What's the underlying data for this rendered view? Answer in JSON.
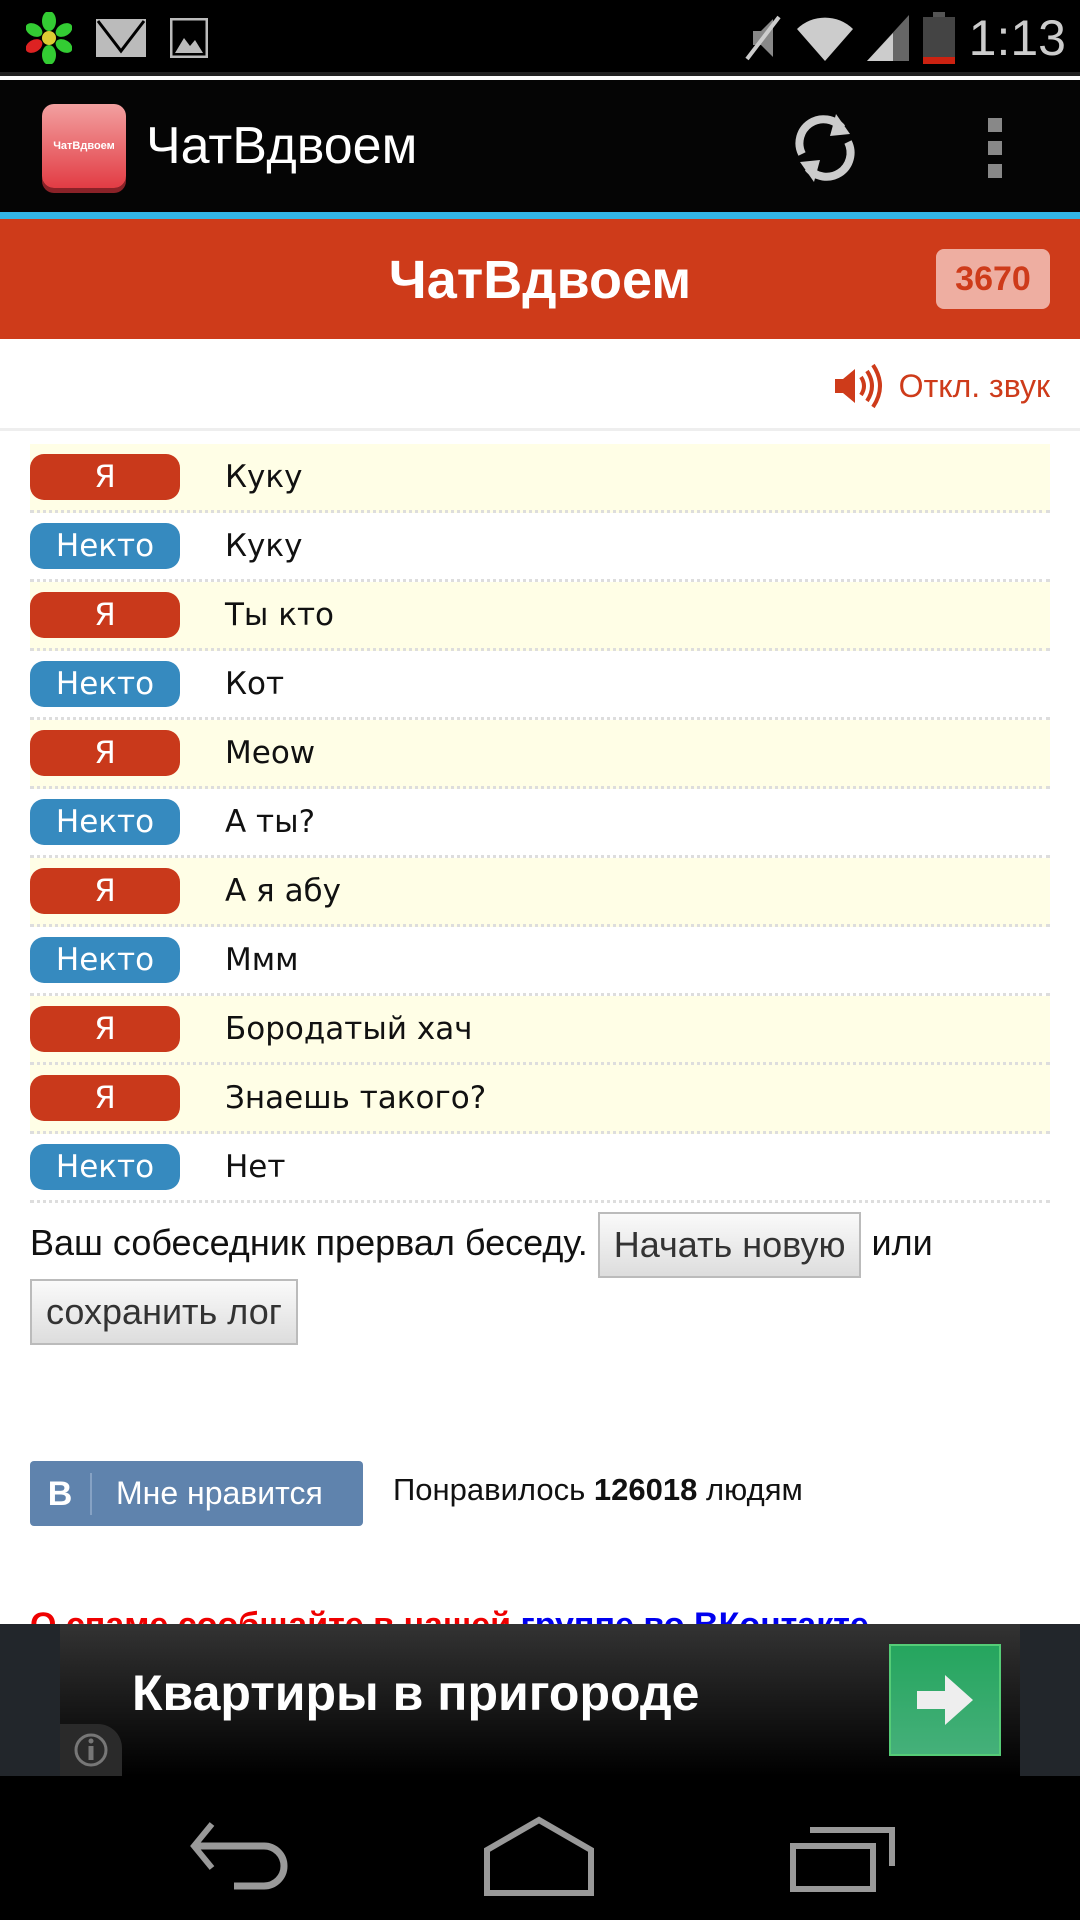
{
  "status_bar": {
    "time": "1:13",
    "icons": [
      "icq-icon",
      "mail-icon",
      "image-icon",
      "mute-icon",
      "wifi-icon",
      "signal-icon",
      "battery-low-icon"
    ]
  },
  "action_bar": {
    "logo_text": "ЧатВдвоем",
    "title": "ЧатВдвоем",
    "actions": [
      "refresh-icon",
      "overflow-menu-icon"
    ]
  },
  "header": {
    "title": "ЧатВдвоем",
    "online_count": "3670"
  },
  "sound": {
    "label": "Откл. звук"
  },
  "messages": [
    {
      "from": "Я",
      "text": "Куку",
      "self": true
    },
    {
      "from": "Некто",
      "text": "Куку",
      "self": false
    },
    {
      "from": "Я",
      "text": "Ты кто",
      "self": true
    },
    {
      "from": "Некто",
      "text": "Кот",
      "self": false
    },
    {
      "from": "Я",
      "text": "Meow",
      "self": true
    },
    {
      "from": "Некто",
      "text": "А ты?",
      "self": false
    },
    {
      "from": "Я",
      "text": "А я абу",
      "self": true
    },
    {
      "from": "Некто",
      "text": "Ммм",
      "self": false
    },
    {
      "from": "Я",
      "text": "Бородатый хач",
      "self": true
    },
    {
      "from": "Я",
      "text": "Знаешь такого?",
      "self": true
    },
    {
      "from": "Некто",
      "text": "Нет",
      "self": false
    }
  ],
  "end": {
    "message": "Ваш собеседник прервал беседу.",
    "new_button": "Начать новую",
    "or": "или",
    "save_button": "сохранить лог"
  },
  "vk": {
    "logo": "В",
    "like_label": "Мне нравится",
    "likes_prefix": "Понравилось",
    "likes_count": "126018",
    "likes_suffix": "людям"
  },
  "spam": {
    "red_text": "О спаме сообщайте в нашей",
    "link_text": "группе во ВКонтакте"
  },
  "ad": {
    "text": "Квартиры в пригороде"
  },
  "colors": {
    "accent": "#ce3b1a",
    "me_badge": "#c9391b",
    "other_badge": "#368abf",
    "me_row": "#fffee6",
    "holo_blue": "#33b5e5"
  }
}
